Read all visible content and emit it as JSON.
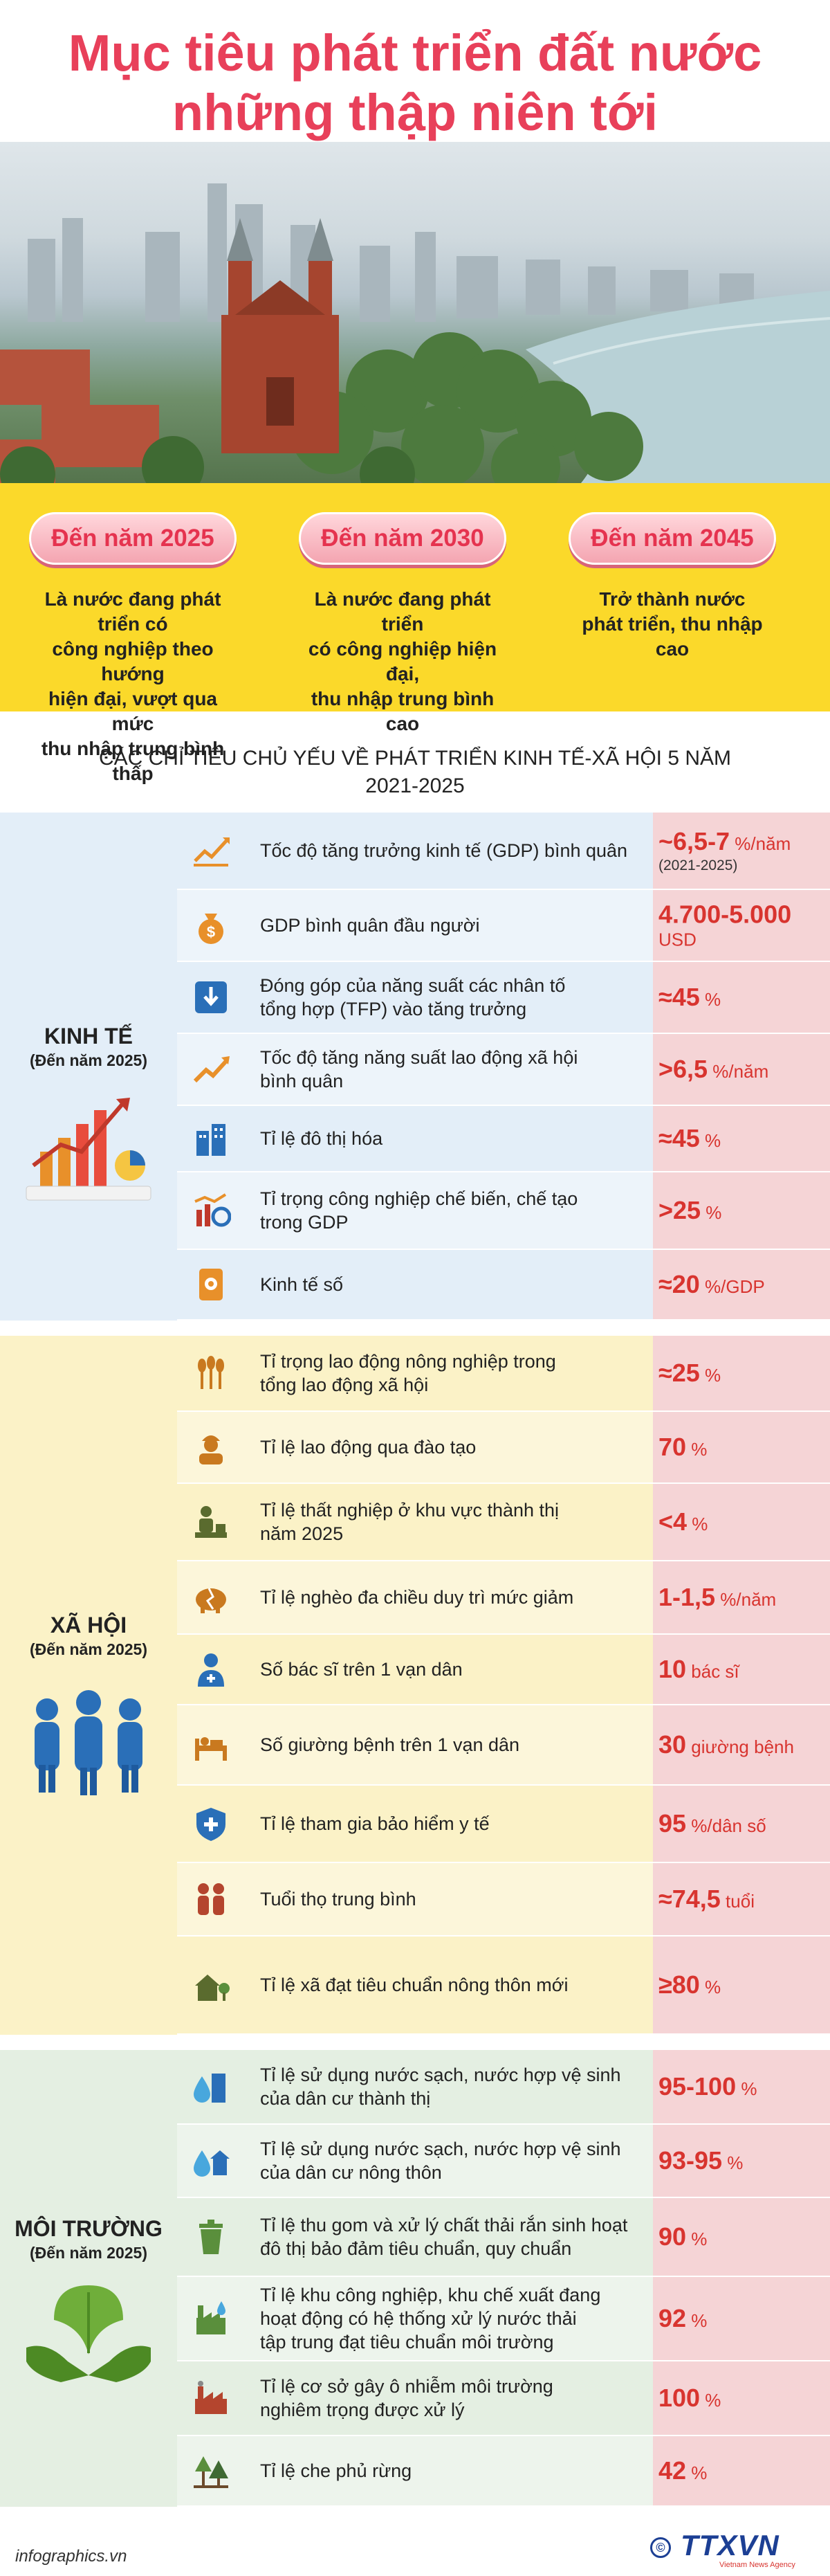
{
  "title": {
    "line1": "Mục tiêu phát triển đất nước",
    "line2": "những thập niên tới"
  },
  "colors": {
    "title": "#e8405a",
    "milestone_bg": "#fbd92a",
    "value": "#d8342f",
    "economy_bg": "#e3eef8",
    "society_bg": "#fbf2c7",
    "environment_bg": "#e4efe2",
    "value_column_bg": "#f5d4d6"
  },
  "milestones": [
    {
      "badge": "Đến năm 2025",
      "desc_lines": [
        "Là nước đang phát triển có",
        "công nghiệp theo hướng",
        "hiện đại, vượt qua mức",
        "thu nhập trung bình thấp"
      ]
    },
    {
      "badge": "Đến năm 2030",
      "desc_lines": [
        "Là nước đang phát triển",
        "có công nghiệp hiện đại,",
        "thu nhập trung bình cao"
      ]
    },
    {
      "badge": "Đến năm 2045",
      "desc_lines": [
        "Trở thành nước",
        "phát triển, thu nhập cao"
      ]
    }
  ],
  "section_heading": {
    "line1": "CÁC CHỈ TIÊU CHỦ YẾU VỀ PHÁT TRIỂN KINH TẾ-XÃ HỘI 5 NĂM",
    "line2": "2021-2025"
  },
  "categories": [
    {
      "id": "economy",
      "title": "KINH TẾ",
      "subtitle": "(Đến năm 2025)",
      "art_icon": "growth-chart-illustration",
      "rows": [
        {
          "icon": "trend-line-icon",
          "label_lines": [
            "Tốc độ tăng trưởng kinh tế (GDP) bình quân"
          ],
          "value": "~6,5-7",
          "unit": " %/năm",
          "note": "(2021-2025)"
        },
        {
          "icon": "money-bag-icon",
          "label_lines": [
            "GDP bình quân đầu người"
          ],
          "value": "4.700-5.000",
          "unit": " USD",
          "note": ""
        },
        {
          "icon": "download-box-icon",
          "label_lines": [
            "Đóng góp của năng suất các nhân tố",
            "tổng hợp (TFP) vào tăng trưởng"
          ],
          "value": "≈45",
          "unit": " %",
          "note": ""
        },
        {
          "icon": "rising-arrow-icon",
          "label_lines": [
            "Tốc độ tăng năng suất lao động xã hội",
            "bình quân"
          ],
          "value": ">6,5",
          "unit": " %/năm",
          "note": ""
        },
        {
          "icon": "city-building-icon",
          "label_lines": [
            "Tỉ lệ đô thị hóa"
          ],
          "value": "≈45",
          "unit": " %",
          "note": ""
        },
        {
          "icon": "industry-chart-icon",
          "label_lines": [
            "Tỉ trọng công nghiệp chế biến, chế tạo",
            "trong GDP"
          ],
          "value": ">25",
          "unit": " %",
          "note": ""
        },
        {
          "icon": "digital-tablet-icon",
          "label_lines": [
            "Kinh tế số"
          ],
          "value": "≈20",
          "unit": " %/GDP",
          "note": ""
        }
      ]
    },
    {
      "id": "society",
      "title": "XÃ HỘI",
      "subtitle": "(Đến năm 2025)",
      "art_icon": "people-group-illustration",
      "rows": [
        {
          "icon": "wheat-icon",
          "label_lines": [
            "Tỉ trọng lao động nông nghiệp trong",
            "tổng lao động xã hội"
          ],
          "value": "≈25",
          "unit": " %",
          "note": ""
        },
        {
          "icon": "worker-icon",
          "label_lines": [
            "Tỉ lệ lao động qua đào tạo"
          ],
          "value": "70",
          "unit": " %",
          "note": ""
        },
        {
          "icon": "unemployed-person-icon",
          "label_lines": [
            "Tỉ lệ thất nghiệp ở khu vực thành thị",
            "năm 2025"
          ],
          "value": "<4",
          "unit": " %",
          "note": ""
        },
        {
          "icon": "broken-piggy-icon",
          "label_lines": [
            "Tỉ lệ nghèo đa chiều duy trì mức giảm"
          ],
          "value": "1-1,5",
          "unit": " %/năm",
          "note": ""
        },
        {
          "icon": "doctor-icon",
          "label_lines": [
            "Số bác sĩ trên 1 vạn dân"
          ],
          "value": "10",
          "unit": " bác sĩ",
          "note": ""
        },
        {
          "icon": "hospital-bed-icon",
          "label_lines": [
            "Số giường bệnh trên 1 vạn dân"
          ],
          "value": "30",
          "unit": " giường bệnh",
          "note": ""
        },
        {
          "icon": "health-shield-icon",
          "label_lines": [
            "Tỉ lệ tham gia bảo hiểm y tế"
          ],
          "value": "95",
          "unit": " %/dân số",
          "note": ""
        },
        {
          "icon": "elderly-couple-icon",
          "label_lines": [
            "Tuổi thọ trung bình"
          ],
          "value": "≈74,5",
          "unit": " tuổi",
          "note": ""
        },
        {
          "icon": "rural-house-icon",
          "label_lines": [
            "Tỉ lệ xã đạt tiêu chuẩn nông thôn mới"
          ],
          "value": "≥80",
          "unit": " %",
          "note": ""
        }
      ]
    },
    {
      "id": "environment",
      "title": "MÔI TRƯỜNG",
      "subtitle": "(Đến năm 2025)",
      "art_icon": "hands-leaf-illustration",
      "rows": [
        {
          "icon": "city-water-drop-icon",
          "label_lines": [
            "Tỉ lệ sử dụng nước sạch, nước hợp vệ sinh",
            "của dân cư thành thị"
          ],
          "value": "95-100",
          "unit": " %",
          "note": ""
        },
        {
          "icon": "village-water-drop-icon",
          "label_lines": [
            "Tỉ lệ sử dụng nước sạch, nước hợp vệ sinh",
            "của dân cư nông thôn"
          ],
          "value": "93-95",
          "unit": " %",
          "note": ""
        },
        {
          "icon": "trash-bin-icon",
          "label_lines": [
            "Tỉ lệ thu gom và xử lý chất thải rắn sinh hoạt",
            "đô thị bảo đảm tiêu chuẩn, quy chuẩn"
          ],
          "value": "90",
          "unit": " %",
          "note": ""
        },
        {
          "icon": "factory-water-icon",
          "label_lines": [
            "Tỉ lệ khu công nghiệp, khu chế xuất đang",
            "hoạt động có hệ thống xử lý nước thải",
            "tập trung đạt tiêu chuẩn môi trường"
          ],
          "value": "92",
          "unit": " %",
          "note": ""
        },
        {
          "icon": "polluting-factory-icon",
          "label_lines": [
            "Tỉ lệ cơ sở gây ô nhiễm môi trường",
            "nghiêm trọng được xử lý"
          ],
          "value": "100",
          "unit": " %",
          "note": ""
        },
        {
          "icon": "forest-icon",
          "label_lines": [
            "Tỉ lệ che phủ rừng"
          ],
          "value": "42",
          "unit": " %",
          "note": ""
        }
      ]
    }
  ],
  "footer": {
    "site": "infographics.vn",
    "logo_text": "TTXVN",
    "logo_copyright": "©",
    "logo_tagline": "Vietnam News Agency"
  }
}
